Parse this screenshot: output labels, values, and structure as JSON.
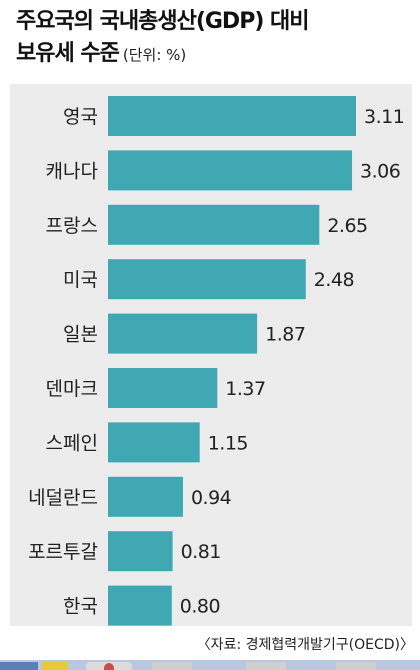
{
  "chart_data": {
    "type": "bar",
    "orientation": "horizontal",
    "title_line1": "주요국의 국내총생산(GDP) 대비",
    "title_line2": "보유세 수준",
    "unit": "(단위: %)",
    "categories": [
      "영국",
      "캐나다",
      "프랑스",
      "미국",
      "일본",
      "덴마크",
      "스페인",
      "네덜란드",
      "포르투갈",
      "한국"
    ],
    "values": [
      3.11,
      3.06,
      2.65,
      2.48,
      1.87,
      1.37,
      1.15,
      0.94,
      0.81,
      0.8
    ],
    "value_labels": [
      "3.11",
      "3.06",
      "2.65",
      "2.48",
      "1.87",
      "1.37",
      "1.15",
      "0.94",
      "0.81",
      "0.80"
    ],
    "xlim": [
      0,
      3.11
    ],
    "bar_color": "#3fa8b3",
    "background_color": "#ececec",
    "source": "〈자료: 경제협력개발기구(OECD)〉"
  }
}
